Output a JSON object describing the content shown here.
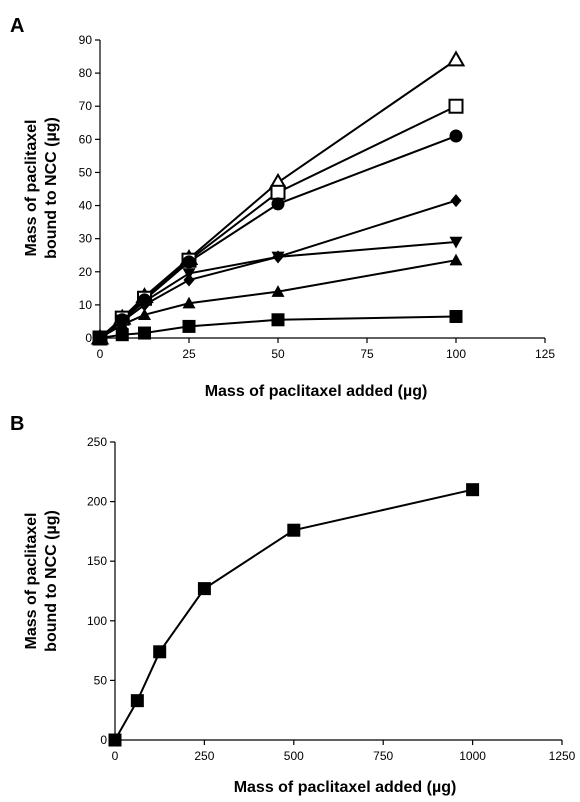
{
  "chart_data": [
    {
      "panel": "A",
      "type": "line",
      "xlabel": "Mass of paclitaxel added (µg)",
      "ylabel_lines": [
        "Mass of paclitaxel",
        "bound to NCC (µg)"
      ],
      "xlim": [
        0,
        125
      ],
      "ylim": [
        0,
        90
      ],
      "xticks": [
        0,
        25,
        50,
        75,
        100,
        125
      ],
      "yticks": [
        0,
        10,
        20,
        30,
        40,
        50,
        60,
        70,
        80,
        90
      ],
      "grid": false,
      "series": [
        {
          "marker": "triangle-open",
          "x": [
            0,
            6.25,
            12.5,
            25,
            50,
            100
          ],
          "y": [
            0,
            6,
            12.5,
            24,
            47,
            84
          ]
        },
        {
          "marker": "square-open",
          "x": [
            0,
            6.25,
            12.5,
            25,
            50,
            100
          ],
          "y": [
            0,
            6,
            12,
            23.5,
            44,
            70
          ]
        },
        {
          "marker": "circle",
          "x": [
            0,
            6.25,
            12.5,
            25,
            50,
            100
          ],
          "y": [
            0,
            5.5,
            11.5,
            23,
            40.5,
            61
          ]
        },
        {
          "marker": "diamond",
          "x": [
            0,
            6.25,
            12.5,
            25,
            50,
            100
          ],
          "y": [
            0,
            5,
            10,
            17.5,
            24.5,
            41.5
          ]
        },
        {
          "marker": "triangle-down",
          "x": [
            0,
            6.25,
            12.5,
            25,
            50,
            100
          ],
          "y": [
            0,
            5.5,
            11,
            19.5,
            24.5,
            29
          ]
        },
        {
          "marker": "triangle",
          "x": [
            0,
            6.25,
            12.5,
            25,
            50,
            100
          ],
          "y": [
            0,
            4,
            7,
            10.5,
            14,
            23.5
          ]
        },
        {
          "marker": "square",
          "x": [
            0,
            6.25,
            12.5,
            25,
            50,
            100
          ],
          "y": [
            0,
            1,
            1.5,
            3.5,
            5.5,
            6.5
          ]
        }
      ]
    },
    {
      "panel": "B",
      "type": "line",
      "xlabel": "Mass of paclitaxel added (µg)",
      "ylabel_lines": [
        "Mass of paclitaxel",
        "bound to NCC (µg)"
      ],
      "xlim": [
        0,
        1250
      ],
      "ylim": [
        0,
        250
      ],
      "xticks": [
        0,
        250,
        500,
        750,
        1000,
        1250
      ],
      "yticks": [
        0,
        50,
        100,
        150,
        200,
        250
      ],
      "grid": false,
      "series": [
        {
          "marker": "square",
          "x": [
            0,
            62.5,
            125,
            250,
            500,
            1000
          ],
          "y": [
            0,
            33,
            74,
            127,
            176,
            210
          ]
        }
      ]
    }
  ]
}
